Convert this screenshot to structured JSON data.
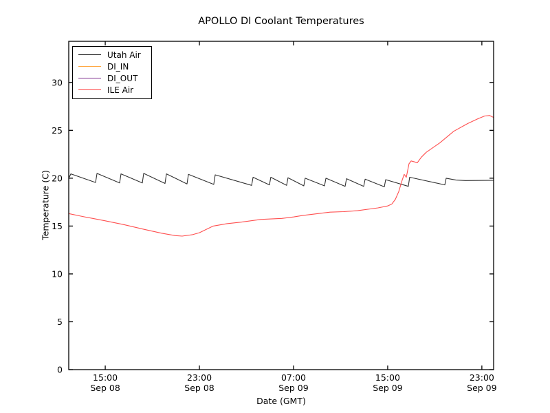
{
  "chart_data": {
    "type": "line",
    "title": "APOLLO DI Coolant Temperatures",
    "xlabel": "Date (GMT)",
    "ylabel": "Temperature (C)",
    "grid": false,
    "legend_position": "upper left",
    "x_unit": "hours since Sep 08 00:00 GMT",
    "xlim": [
      11.9,
      48.0
    ],
    "ylim": [
      0,
      34.3
    ],
    "x_ticks": [
      {
        "value": 15,
        "label_time": "15:00",
        "label_date": "Sep 08"
      },
      {
        "value": 23,
        "label_time": "23:00",
        "label_date": "Sep 08"
      },
      {
        "value": 31,
        "label_time": "07:00",
        "label_date": "Sep 09"
      },
      {
        "value": 39,
        "label_time": "15:00",
        "label_date": "Sep 09"
      },
      {
        "value": 47,
        "label_time": "23:00",
        "label_date": "Sep 09"
      }
    ],
    "y_ticks": [
      {
        "value": 0,
        "label": "0"
      },
      {
        "value": 5,
        "label": "5"
      },
      {
        "value": 10,
        "label": "10"
      },
      {
        "value": 15,
        "label": "15"
      },
      {
        "value": 20,
        "label": "20"
      },
      {
        "value": 25,
        "label": "25"
      },
      {
        "value": 30,
        "label": "30"
      }
    ],
    "series": [
      {
        "name": "Utah Air",
        "color": "#1a1a1a",
        "points": [
          [
            11.9,
            20.0
          ],
          [
            12.08,
            20.45
          ],
          [
            14.18,
            19.55
          ],
          [
            14.3,
            20.5
          ],
          [
            16.22,
            19.5
          ],
          [
            16.34,
            20.45
          ],
          [
            18.15,
            19.5
          ],
          [
            18.27,
            20.5
          ],
          [
            20.08,
            19.45
          ],
          [
            20.2,
            20.45
          ],
          [
            21.95,
            19.4
          ],
          [
            22.07,
            20.4
          ],
          [
            24.22,
            19.35
          ],
          [
            24.34,
            20.35
          ],
          [
            27.44,
            19.25
          ],
          [
            27.56,
            20.1
          ],
          [
            28.95,
            19.3
          ],
          [
            29.07,
            20.1
          ],
          [
            30.41,
            19.25
          ],
          [
            30.53,
            20.05
          ],
          [
            31.87,
            19.2
          ],
          [
            31.99,
            20.0
          ],
          [
            33.63,
            19.2
          ],
          [
            33.75,
            20.0
          ],
          [
            35.38,
            19.15
          ],
          [
            35.5,
            19.95
          ],
          [
            36.96,
            19.15
          ],
          [
            37.08,
            19.9
          ],
          [
            38.71,
            19.1
          ],
          [
            38.83,
            19.85
          ],
          [
            40.75,
            19.15
          ],
          [
            40.87,
            20.1
          ],
          [
            43.85,
            19.3
          ],
          [
            43.97,
            20.0
          ],
          [
            44.8,
            19.8
          ],
          [
            45.6,
            19.75
          ],
          [
            48.0,
            19.78
          ]
        ]
      },
      {
        "name": "DI_IN",
        "color": "#ffa640",
        "points": [
          [
            11.9,
            0
          ],
          [
            48.0,
            0
          ]
        ]
      },
      {
        "name": "DI_OUT",
        "color": "#7d2e8d",
        "points": [
          [
            11.9,
            0
          ],
          [
            48.0,
            0
          ]
        ]
      },
      {
        "name": "ILE Air",
        "color": "#ff3b3b",
        "points": [
          [
            11.9,
            16.3
          ],
          [
            13.07,
            16.0
          ],
          [
            15.0,
            15.55
          ],
          [
            16.58,
            15.15
          ],
          [
            18.33,
            14.65
          ],
          [
            19.79,
            14.25
          ],
          [
            20.96,
            14.0
          ],
          [
            21.54,
            13.95
          ],
          [
            22.42,
            14.1
          ],
          [
            23.0,
            14.3
          ],
          [
            24.17,
            15.0
          ],
          [
            25.34,
            15.25
          ],
          [
            26.5,
            15.4
          ],
          [
            28.26,
            15.7
          ],
          [
            30.01,
            15.8
          ],
          [
            31.0,
            15.95
          ],
          [
            31.76,
            16.1
          ],
          [
            34.1,
            16.45
          ],
          [
            35.26,
            16.5
          ],
          [
            36.43,
            16.6
          ],
          [
            38.18,
            16.9
          ],
          [
            39.0,
            17.1
          ],
          [
            39.35,
            17.3
          ],
          [
            39.65,
            17.8
          ],
          [
            39.94,
            18.6
          ],
          [
            40.23,
            19.8
          ],
          [
            40.4,
            20.4
          ],
          [
            40.58,
            20.1
          ],
          [
            40.81,
            21.5
          ],
          [
            40.99,
            21.8
          ],
          [
            41.28,
            21.7
          ],
          [
            41.51,
            21.6
          ],
          [
            41.86,
            22.2
          ],
          [
            42.27,
            22.7
          ],
          [
            43.44,
            23.7
          ],
          [
            44.61,
            24.9
          ],
          [
            45.78,
            25.7
          ],
          [
            46.65,
            26.2
          ],
          [
            47.24,
            26.5
          ],
          [
            47.65,
            26.55
          ],
          [
            48.0,
            26.35
          ]
        ]
      }
    ]
  },
  "colors": {
    "spine": "#000000",
    "background": "#ffffff",
    "text": "#000000"
  }
}
